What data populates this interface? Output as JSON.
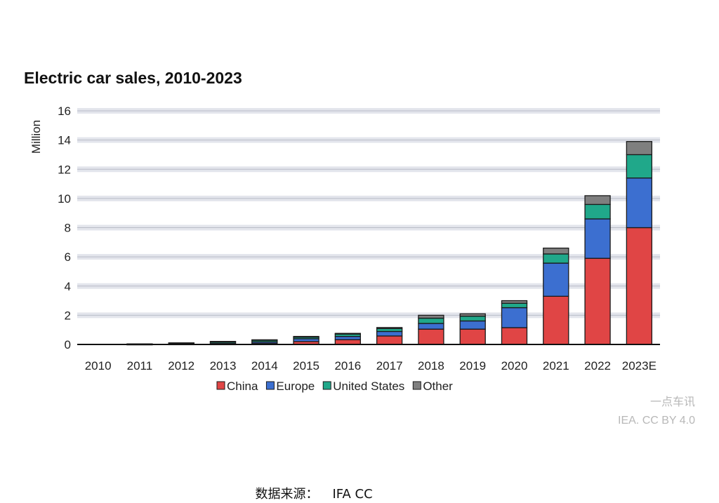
{
  "chart_data": {
    "type": "bar",
    "stacked": true,
    "title": "Electric car sales, 2010-2023",
    "ylabel": "Million",
    "xlabel": "",
    "ylim": [
      0,
      16
    ],
    "yticks": [
      0,
      2,
      4,
      6,
      8,
      10,
      12,
      14,
      16
    ],
    "grid": true,
    "legend": "bottom",
    "categories": [
      "2010",
      "2011",
      "2012",
      "2013",
      "2014",
      "2015",
      "2016",
      "2017",
      "2018",
      "2019",
      "2020",
      "2021",
      "2022",
      "2023E"
    ],
    "series": [
      {
        "name": "China",
        "color": "#e04545",
        "values": [
          0.0,
          0.01,
          0.02,
          0.02,
          0.08,
          0.2,
          0.33,
          0.58,
          1.05,
          1.05,
          1.15,
          3.3,
          5.9,
          8.0
        ]
      },
      {
        "name": "Europe",
        "color": "#3c6fd0",
        "values": [
          0.0,
          0.01,
          0.03,
          0.07,
          0.1,
          0.19,
          0.22,
          0.31,
          0.39,
          0.56,
          1.37,
          2.27,
          2.7,
          3.4
        ]
      },
      {
        "name": "United States",
        "color": "#20a88a",
        "values": [
          0.0,
          0.02,
          0.05,
          0.1,
          0.12,
          0.11,
          0.16,
          0.2,
          0.36,
          0.33,
          0.3,
          0.63,
          0.99,
          1.6
        ]
      },
      {
        "name": "Other",
        "color": "#7f7f7f",
        "values": [
          0.0,
          0.0,
          0.01,
          0.02,
          0.02,
          0.05,
          0.05,
          0.07,
          0.2,
          0.16,
          0.18,
          0.4,
          0.6,
          0.9
        ]
      }
    ]
  },
  "watermark": {
    "line1": "一点车讯",
    "line2": "IEA. CC BY 4.0"
  },
  "source": {
    "label": "数据来源：",
    "value": "IFA CC"
  }
}
